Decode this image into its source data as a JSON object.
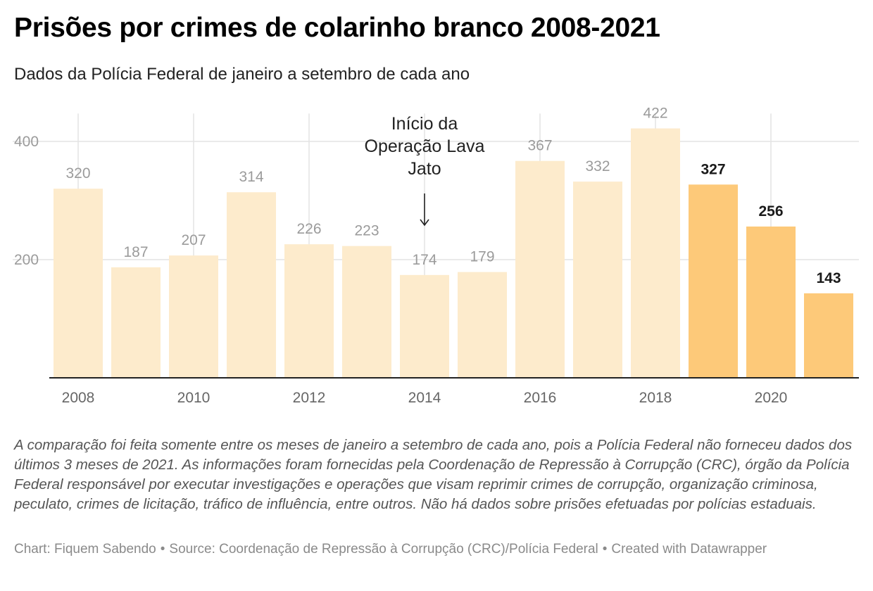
{
  "header": {
    "title": "Prisões por crimes de colarinho branco 2008-2021",
    "subtitle": "Dados da Polícia Federal de janeiro a setembro de cada ano"
  },
  "chart_data": {
    "type": "bar",
    "categories": [
      "2008",
      "2009",
      "2010",
      "2011",
      "2012",
      "2013",
      "2014",
      "2015",
      "2016",
      "2017",
      "2018",
      "2019",
      "2020",
      "2021"
    ],
    "values": [
      320,
      187,
      207,
      314,
      226,
      223,
      174,
      179,
      367,
      332,
      422,
      327,
      256,
      143
    ],
    "highlighted_categories": [
      "2019",
      "2020",
      "2021"
    ],
    "x_tick_labels": [
      "2008",
      "2010",
      "2012",
      "2014",
      "2016",
      "2018",
      "2020"
    ],
    "y_ticks": [
      200,
      400
    ],
    "ylim": [
      0,
      440
    ],
    "grid": true,
    "annotation": {
      "text_lines": [
        "Início da",
        "Operação Lava",
        "Jato"
      ],
      "category": "2014"
    },
    "colors": {
      "bar": "#fdebcc",
      "bar_highlight": "#fdc979",
      "label": "#9b9b9b",
      "label_highlight": "#1a1a1a",
      "grid": "#e3e3e3",
      "axis": "#222222"
    }
  },
  "notes": "A comparação foi feita somente entre os meses de janeiro a setembro de cada ano, pois a Polícia Federal não forneceu dados dos últimos 3 meses de 2021. As informações foram fornecidas pela Coordenação de Repressão à Corrupção (CRC), órgão da Polícia Federal responsável por executar investigações e operações que visam reprimir crimes de corrupção, organização criminosa, peculato, crimes de licitação, tráfico de influência, entre outros. Não há dados sobre prisões efetuadas por polícias estaduais.",
  "credit": {
    "chart_by": "Chart: Fiquem Sabendo",
    "source": "Source: Coordenação de Repressão à Corrupção (CRC)/Polícia Federal",
    "tool": "Created with Datawrapper"
  }
}
